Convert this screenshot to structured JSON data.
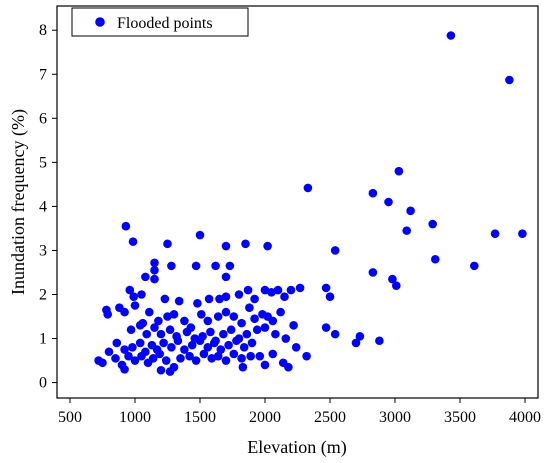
{
  "chart_data": {
    "type": "scatter",
    "xlabel": "Elevation (m)",
    "ylabel": "Inundation frequency (%)",
    "xlim": [
      400,
      4100
    ],
    "ylim": [
      -0.35,
      8.55
    ],
    "xticks": [
      500,
      1000,
      1500,
      2000,
      2500,
      3000,
      3500,
      4000
    ],
    "yticks": [
      0,
      1,
      2,
      3,
      4,
      5,
      6,
      7,
      8
    ],
    "legend_position": "top-left",
    "marker_color": "#0000ff",
    "series": [
      {
        "name": "Flooded points",
        "points": [
          [
            930,
            3.55
          ],
          [
            985,
            3.2
          ],
          [
            1150,
            2.72
          ],
          [
            1150,
            2.55
          ],
          [
            1250,
            3.15
          ],
          [
            1500,
            3.35
          ],
          [
            1700,
            3.1
          ],
          [
            1850,
            3.15
          ],
          [
            2020,
            3.1
          ],
          [
            1280,
            2.65
          ],
          [
            1470,
            2.65
          ],
          [
            1620,
            2.65
          ],
          [
            1730,
            2.65
          ],
          [
            1080,
            2.4
          ],
          [
            1700,
            2.4
          ],
          [
            960,
            2.1
          ],
          [
            990,
            1.95
          ],
          [
            1050,
            2.0
          ],
          [
            1150,
            2.35
          ],
          [
            1230,
            1.9
          ],
          [
            1340,
            1.85
          ],
          [
            1480,
            1.8
          ],
          [
            1570,
            1.9
          ],
          [
            1650,
            1.9
          ],
          [
            1700,
            1.95
          ],
          [
            1800,
            2.0
          ],
          [
            1870,
            2.1
          ],
          [
            1920,
            1.9
          ],
          [
            2000,
            2.1
          ],
          [
            2050,
            2.05
          ],
          [
            2100,
            2.1
          ],
          [
            2150,
            1.95
          ],
          [
            2200,
            2.1
          ],
          [
            2270,
            2.15
          ],
          [
            780,
            1.65
          ],
          [
            790,
            1.55
          ],
          [
            880,
            1.7
          ],
          [
            920,
            1.6
          ],
          [
            1000,
            1.75
          ],
          [
            1060,
            1.35
          ],
          [
            1110,
            1.6
          ],
          [
            1180,
            1.4
          ],
          [
            1250,
            1.5
          ],
          [
            1300,
            1.55
          ],
          [
            1380,
            1.4
          ],
          [
            1430,
            1.25
          ],
          [
            1510,
            1.55
          ],
          [
            1560,
            1.4
          ],
          [
            1640,
            1.5
          ],
          [
            1700,
            1.6
          ],
          [
            1760,
            1.5
          ],
          [
            1820,
            1.35
          ],
          [
            1880,
            1.7
          ],
          [
            1920,
            1.45
          ],
          [
            1980,
            1.55
          ],
          [
            2020,
            1.5
          ],
          [
            2060,
            1.4
          ],
          [
            2120,
            1.6
          ],
          [
            2220,
            1.3
          ],
          [
            970,
            1.2
          ],
          [
            1040,
            1.3
          ],
          [
            1090,
            1.1
          ],
          [
            1150,
            1.25
          ],
          [
            1200,
            1.1
          ],
          [
            1270,
            1.2
          ],
          [
            1320,
            1.05
          ],
          [
            1400,
            1.15
          ],
          [
            1460,
            1.0
          ],
          [
            1520,
            1.05
          ],
          [
            1580,
            1.15
          ],
          [
            1620,
            0.95
          ],
          [
            1680,
            1.1
          ],
          [
            1740,
            1.2
          ],
          [
            1800,
            1.0
          ],
          [
            1860,
            1.1
          ],
          [
            1940,
            1.2
          ],
          [
            2000,
            1.25
          ],
          [
            2080,
            1.1
          ],
          [
            2160,
            1.0
          ],
          [
            860,
            0.9
          ],
          [
            920,
            0.75
          ],
          [
            980,
            0.8
          ],
          [
            1040,
            0.9
          ],
          [
            1080,
            0.7
          ],
          [
            1130,
            0.85
          ],
          [
            1170,
            0.75
          ],
          [
            1220,
            0.9
          ],
          [
            1280,
            0.8
          ],
          [
            1330,
            0.95
          ],
          [
            1380,
            0.75
          ],
          [
            1440,
            0.85
          ],
          [
            1500,
            0.95
          ],
          [
            1560,
            0.8
          ],
          [
            1610,
            0.9
          ],
          [
            1660,
            0.75
          ],
          [
            1720,
            0.85
          ],
          [
            1780,
            0.95
          ],
          [
            1840,
            0.8
          ],
          [
            1900,
            0.9
          ],
          [
            2240,
            0.8
          ],
          [
            720,
            0.5
          ],
          [
            750,
            0.45
          ],
          [
            800,
            0.7
          ],
          [
            850,
            0.55
          ],
          [
            900,
            0.4
          ],
          [
            950,
            0.6
          ],
          [
            1000,
            0.5
          ],
          [
            1050,
            0.6
          ],
          [
            1100,
            0.45
          ],
          [
            1140,
            0.55
          ],
          [
            1190,
            0.65
          ],
          [
            1240,
            0.5
          ],
          [
            1300,
            0.35
          ],
          [
            1350,
            0.55
          ],
          [
            1420,
            0.6
          ],
          [
            1470,
            0.5
          ],
          [
            1530,
            0.65
          ],
          [
            1590,
            0.55
          ],
          [
            1640,
            0.6
          ],
          [
            1700,
            0.5
          ],
          [
            1760,
            0.65
          ],
          [
            1820,
            0.55
          ],
          [
            1830,
            0.35
          ],
          [
            1890,
            0.6
          ],
          [
            1960,
            0.6
          ],
          [
            2000,
            0.4
          ],
          [
            2060,
            0.65
          ],
          [
            2140,
            0.45
          ],
          [
            2180,
            0.35
          ],
          [
            2320,
            0.6
          ],
          [
            920,
            0.3
          ],
          [
            1200,
            0.28
          ],
          [
            1270,
            0.25
          ],
          [
            2330,
            4.42
          ],
          [
            2540,
            3.0
          ],
          [
            2470,
            2.15
          ],
          [
            2500,
            1.95
          ],
          [
            2470,
            1.25
          ],
          [
            2540,
            1.1
          ],
          [
            2700,
            0.9
          ],
          [
            2730,
            1.05
          ],
          [
            2880,
            0.95
          ],
          [
            2830,
            2.5
          ],
          [
            2830,
            4.3
          ],
          [
            2950,
            4.1
          ],
          [
            3030,
            4.8
          ],
          [
            3090,
            3.45
          ],
          [
            3120,
            3.9
          ],
          [
            3290,
            3.6
          ],
          [
            3310,
            2.8
          ],
          [
            2980,
            2.35
          ],
          [
            3010,
            2.2
          ],
          [
            3430,
            7.88
          ],
          [
            3880,
            6.87
          ],
          [
            3610,
            2.65
          ],
          [
            3770,
            3.38
          ],
          [
            3980,
            3.38
          ]
        ]
      }
    ]
  }
}
